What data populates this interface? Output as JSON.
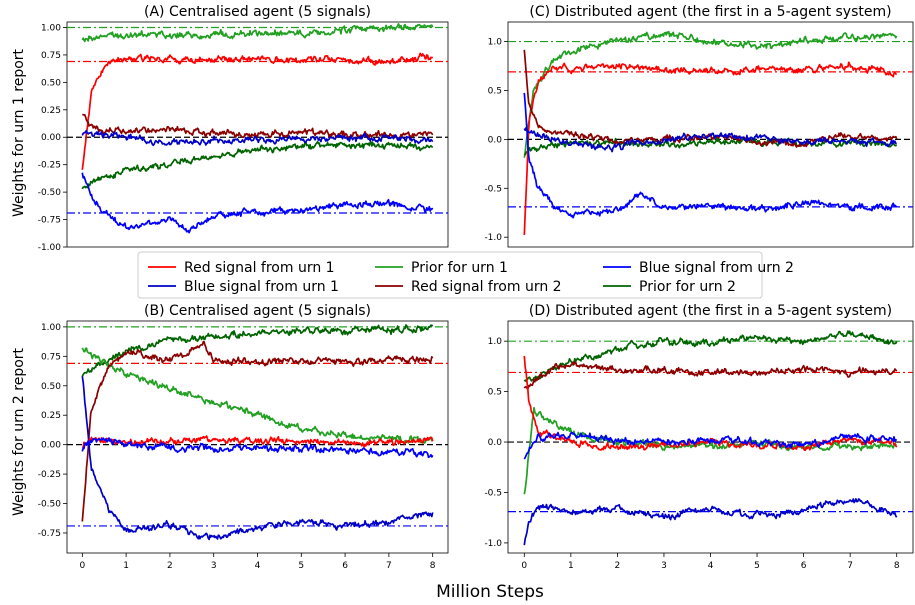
{
  "figure": {
    "xlabel": "Million Steps",
    "legend": {
      "placement": "center, between rows",
      "entries": [
        {
          "label": "Red signal from urn 1",
          "color": "#ff0000"
        },
        {
          "label": "Prior for urn 1",
          "color": "#22a022"
        },
        {
          "label": "Blue signal from urn 2",
          "color": "#0000ff"
        },
        {
          "label": "Blue signal from urn 1",
          "color": "#0000c8"
        },
        {
          "label": "Red signal from urn 2",
          "color": "#8b0000"
        },
        {
          "label": "Prior for urn 2",
          "color": "#006400"
        }
      ]
    }
  },
  "chart_data": [
    {
      "type": "line",
      "title": "(A) Centralised agent (5 signals)",
      "ylabel": "Weights for urn 1 report",
      "xlabel": "",
      "xlim": [
        -0.35,
        8.35
      ],
      "ylim": [
        -1.0,
        1.05
      ],
      "xticks": [],
      "yticks": [
        -1.0,
        -0.75,
        -0.5,
        -0.25,
        0.0,
        0.25,
        0.5,
        0.75,
        1.0
      ],
      "ytick_labels": [
        "-1.00",
        "-0.75",
        "-0.50",
        "-0.25",
        "0.00",
        "0.25",
        "0.50",
        "0.75",
        "1.00"
      ],
      "reference_lines": [
        {
          "y": 1.0,
          "color": "#22a022",
          "style": "dashdot"
        },
        {
          "y": 0.69,
          "color": "#ff0000",
          "style": "dashdot"
        },
        {
          "y": 0.0,
          "color": "#000000",
          "style": "dashed"
        },
        {
          "y": -0.69,
          "color": "#0000ff",
          "style": "dashdot"
        }
      ],
      "series": [
        {
          "color": "#22a022",
          "x": [
            0,
            0.3,
            1,
            2,
            3,
            4,
            5,
            6,
            7,
            8
          ],
          "y": [
            0.88,
            0.92,
            0.94,
            0.93,
            0.93,
            0.95,
            0.95,
            0.97,
            1.0,
            1.01
          ]
        },
        {
          "color": "#006400",
          "x": [
            0,
            0.3,
            1,
            2,
            3,
            4,
            5,
            6,
            7,
            8
          ],
          "y": [
            -0.45,
            -0.4,
            -0.3,
            -0.24,
            -0.18,
            -0.12,
            -0.08,
            -0.06,
            -0.08,
            -0.1
          ]
        },
        {
          "color": "#ff0000",
          "x": [
            0,
            0.2,
            0.5,
            1,
            2,
            3,
            4,
            5,
            6,
            7,
            8
          ],
          "y": [
            -0.3,
            0.4,
            0.65,
            0.72,
            0.7,
            0.7,
            0.72,
            0.7,
            0.7,
            0.68,
            0.74
          ]
        },
        {
          "color": "#0000ff",
          "x": [
            0,
            0.3,
            0.7,
            1,
            2,
            2.5,
            3,
            4,
            5,
            6,
            7,
            8
          ],
          "y": [
            -0.33,
            -0.6,
            -0.75,
            -0.82,
            -0.75,
            -0.85,
            -0.72,
            -0.68,
            -0.66,
            -0.62,
            -0.6,
            -0.67
          ]
        },
        {
          "color": "#8b0000",
          "x": [
            0,
            0.3,
            1,
            2,
            3,
            4,
            5,
            6,
            7,
            8
          ],
          "y": [
            0.2,
            0.08,
            0.05,
            0.08,
            0.04,
            0.02,
            0.04,
            0.03,
            0.02,
            0.01
          ]
        },
        {
          "color": "#0000c8",
          "x": [
            0,
            0.3,
            1,
            2,
            3,
            4,
            5,
            6,
            7,
            8
          ],
          "y": [
            0.02,
            0.03,
            0.0,
            -0.05,
            -0.03,
            -0.02,
            -0.01,
            0.0,
            -0.01,
            -0.02
          ]
        }
      ]
    },
    {
      "type": "line",
      "title": "(C) Distributed agent (the first in a 5-agent system)",
      "ylabel": "",
      "xlabel": "",
      "xlim": [
        -0.35,
        8.35
      ],
      "ylim": [
        -1.1,
        1.2
      ],
      "xticks": [],
      "yticks": [
        -1.0,
        -0.5,
        0.0,
        0.5,
        1.0
      ],
      "ytick_labels": [
        "-1.0",
        "-0.5",
        "0.0",
        "0.5",
        "1.0"
      ],
      "reference_lines": [
        {
          "y": 1.0,
          "color": "#22a022",
          "style": "dashdot"
        },
        {
          "y": 0.69,
          "color": "#ff0000",
          "style": "dashdot"
        },
        {
          "y": 0.0,
          "color": "#000000",
          "style": "dashed"
        },
        {
          "y": -0.69,
          "color": "#0000ff",
          "style": "dashdot"
        }
      ],
      "series": [
        {
          "color": "#22a022",
          "x": [
            0,
            0.2,
            0.6,
            1,
            2,
            3,
            4,
            5,
            6,
            7,
            8
          ],
          "y": [
            -0.2,
            0.5,
            0.8,
            0.9,
            1.0,
            1.08,
            1.0,
            0.95,
            1.0,
            1.05,
            1.08
          ]
        },
        {
          "color": "#006400",
          "x": [
            0,
            0.3,
            1,
            2,
            3,
            4,
            5,
            6,
            7,
            8
          ],
          "y": [
            -0.15,
            -0.08,
            -0.05,
            -0.03,
            -0.04,
            -0.03,
            -0.02,
            -0.05,
            -0.04,
            -0.06
          ]
        },
        {
          "color": "#ff0000",
          "x": [
            0,
            0.1,
            0.3,
            0.6,
            1,
            2,
            3,
            4,
            5,
            6,
            7,
            8
          ],
          "y": [
            -1.0,
            0.2,
            0.6,
            0.72,
            0.72,
            0.75,
            0.7,
            0.7,
            0.72,
            0.72,
            0.76,
            0.68
          ]
        },
        {
          "color": "#0000ff",
          "x": [
            0,
            0.1,
            0.3,
            0.7,
            1,
            2,
            2.5,
            3,
            4,
            5,
            6,
            7,
            8
          ],
          "y": [
            0.45,
            -0.2,
            -0.5,
            -0.7,
            -0.78,
            -0.72,
            -0.55,
            -0.7,
            -0.68,
            -0.72,
            -0.65,
            -0.7,
            -0.68
          ]
        },
        {
          "color": "#8b0000",
          "x": [
            0,
            0.1,
            0.3,
            1,
            2,
            3,
            4,
            5,
            6,
            7,
            8
          ],
          "y": [
            0.92,
            0.35,
            0.1,
            0.05,
            -0.02,
            0.0,
            0.03,
            -0.02,
            -0.05,
            0.05,
            0.0
          ]
        },
        {
          "color": "#0000c8",
          "x": [
            0,
            0.3,
            1,
            2,
            3,
            4,
            5,
            6,
            7,
            8
          ],
          "y": [
            0.1,
            0.05,
            -0.05,
            -0.08,
            0.0,
            0.05,
            0.02,
            -0.03,
            -0.02,
            -0.05
          ]
        }
      ]
    },
    {
      "type": "line",
      "title": "(B) Centralised agent (5 signals)",
      "ylabel": "Weights for urn 2 report",
      "xlabel": "",
      "xlim": [
        -0.35,
        8.35
      ],
      "ylim": [
        -0.92,
        1.05
      ],
      "xticks": [
        0,
        1,
        2,
        3,
        4,
        5,
        6,
        7,
        8
      ],
      "yticks": [
        -0.75,
        -0.5,
        -0.25,
        0.0,
        0.25,
        0.5,
        0.75,
        1.0
      ],
      "ytick_labels": [
        "-0.75",
        "-0.50",
        "-0.25",
        "0.00",
        "0.25",
        "0.50",
        "0.75",
        "1.00"
      ],
      "reference_lines": [
        {
          "y": 1.0,
          "color": "#22a022",
          "style": "dashdot"
        },
        {
          "y": 0.69,
          "color": "#ff0000",
          "style": "dashdot"
        },
        {
          "y": 0.0,
          "color": "#000000",
          "style": "dashed"
        },
        {
          "y": -0.69,
          "color": "#0000ff",
          "style": "dashdot"
        }
      ],
      "series": [
        {
          "color": "#006400",
          "x": [
            0,
            0.3,
            1,
            2,
            3,
            4,
            5,
            6,
            7,
            8
          ],
          "y": [
            0.58,
            0.65,
            0.8,
            0.88,
            0.92,
            0.95,
            0.96,
            0.97,
            0.98,
            1.0
          ]
        },
        {
          "color": "#22a022",
          "x": [
            0,
            0.3,
            1,
            2,
            3,
            4,
            5,
            6,
            7,
            8
          ],
          "y": [
            0.82,
            0.75,
            0.6,
            0.48,
            0.35,
            0.25,
            0.15,
            0.08,
            0.05,
            0.03
          ]
        },
        {
          "color": "#8b0000",
          "x": [
            0,
            0.2,
            0.6,
            1,
            2,
            2.8,
            3,
            4,
            5,
            6,
            7,
            8
          ],
          "y": [
            -0.65,
            0.3,
            0.65,
            0.78,
            0.72,
            0.85,
            0.72,
            0.7,
            0.72,
            0.7,
            0.72,
            0.73
          ]
        },
        {
          "color": "#0000c8",
          "x": [
            0,
            0.2,
            0.6,
            1,
            2,
            3,
            4,
            5,
            6,
            7,
            8
          ],
          "y": [
            0.6,
            -0.2,
            -0.55,
            -0.72,
            -0.68,
            -0.8,
            -0.72,
            -0.65,
            -0.7,
            -0.65,
            -0.58
          ]
        },
        {
          "color": "#ff0000",
          "x": [
            0,
            0.3,
            1,
            2,
            3,
            4,
            5,
            6,
            7,
            8
          ],
          "y": [
            0.0,
            0.05,
            0.02,
            0.03,
            0.04,
            0.02,
            0.03,
            0.02,
            0.02,
            0.04
          ]
        },
        {
          "color": "#0000ff",
          "x": [
            0,
            0.3,
            1,
            2,
            3,
            4,
            5,
            6,
            7,
            8
          ],
          "y": [
            -0.05,
            0.05,
            0.0,
            -0.03,
            -0.02,
            -0.04,
            -0.03,
            -0.05,
            -0.06,
            -0.08
          ]
        }
      ]
    },
    {
      "type": "line",
      "title": "(D) Distributed agent (the first in a 5-agent system)",
      "ylabel": "",
      "xlabel": "",
      "xlim": [
        -0.35,
        8.35
      ],
      "ylim": [
        -1.1,
        1.2
      ],
      "xticks": [
        0,
        1,
        2,
        3,
        4,
        5,
        6,
        7,
        8
      ],
      "yticks": [
        -1.0,
        -0.5,
        0.0,
        0.5,
        1.0
      ],
      "ytick_labels": [
        "-1.0",
        "-0.5",
        "0.0",
        "0.5",
        "1.0"
      ],
      "reference_lines": [
        {
          "y": 1.0,
          "color": "#22a022",
          "style": "dashdot"
        },
        {
          "y": 0.69,
          "color": "#ff0000",
          "style": "dashdot"
        },
        {
          "y": 0.0,
          "color": "#000000",
          "style": "dashed"
        },
        {
          "y": -0.69,
          "color": "#0000ff",
          "style": "dashdot"
        }
      ],
      "series": [
        {
          "color": "#006400",
          "x": [
            0,
            0.2,
            0.6,
            1,
            2,
            3,
            4,
            5,
            6,
            7,
            8
          ],
          "y": [
            0.6,
            0.62,
            0.72,
            0.8,
            0.92,
            1.0,
            0.98,
            1.05,
            1.0,
            1.08,
            0.98
          ]
        },
        {
          "color": "#22a022",
          "x": [
            0,
            0.2,
            0.6,
            1,
            2,
            3,
            4,
            5,
            6,
            7,
            8
          ],
          "y": [
            -0.52,
            0.3,
            0.2,
            0.1,
            0.0,
            -0.05,
            -0.03,
            -0.02,
            -0.04,
            -0.05,
            -0.03
          ]
        },
        {
          "color": "#8b0000",
          "x": [
            0,
            0.2,
            0.6,
            1,
            2,
            3,
            4,
            5,
            6,
            7,
            8
          ],
          "y": [
            0.55,
            0.6,
            0.72,
            0.76,
            0.7,
            0.72,
            0.68,
            0.7,
            0.72,
            0.7,
            0.7
          ]
        },
        {
          "color": "#0000c8",
          "x": [
            0,
            0.1,
            0.3,
            0.7,
            1,
            2,
            3,
            4,
            5,
            6,
            7,
            8
          ],
          "y": [
            -1.0,
            -0.8,
            -0.65,
            -0.62,
            -0.7,
            -0.65,
            -0.75,
            -0.66,
            -0.72,
            -0.68,
            -0.55,
            -0.72
          ]
        },
        {
          "color": "#ff0000",
          "x": [
            0,
            0.1,
            0.3,
            1,
            2,
            3,
            4,
            5,
            6,
            7,
            8
          ],
          "y": [
            0.85,
            0.4,
            0.1,
            0.0,
            -0.05,
            -0.03,
            0.0,
            -0.02,
            -0.05,
            0.02,
            0.0
          ]
        },
        {
          "color": "#0000ff",
          "x": [
            0,
            0.3,
            1,
            2,
            3,
            4,
            5,
            6,
            7,
            8
          ],
          "y": [
            -0.2,
            0.05,
            0.08,
            0.02,
            0.0,
            0.03,
            0.0,
            -0.02,
            0.05,
            0.02
          ]
        }
      ]
    }
  ]
}
